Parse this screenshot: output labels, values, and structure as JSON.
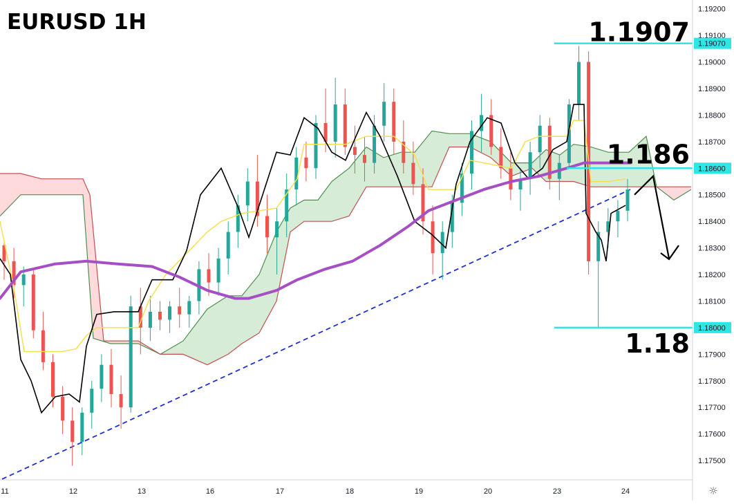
{
  "chart_data": {
    "type": "candlestick",
    "title": "EURUSD 1H",
    "colors": {
      "up": "#26a69a",
      "down": "#ef5350",
      "ma200": "#a64fc4",
      "tenkan": "#000000",
      "kijun": "#f5e050",
      "cloud_bull_fill": "#c8e6c9",
      "cloud_bull_line": "#4c8f4c",
      "cloud_bear_fill": "#ffcdd2",
      "cloud_bear_line": "#c0504d",
      "trendline": "#1a2fd6",
      "level_line": "#2ee6e6",
      "annotation": "#000000"
    },
    "x_axis": {
      "tick_labels": [
        "11",
        "12",
        "13",
        "16",
        "17",
        "18",
        "19",
        "20",
        "23",
        "24"
      ]
    },
    "y_axis": {
      "ylim": [
        1.1743,
        1.1922
      ],
      "tick_labels": [
        "1.19200",
        "1.19100",
        "1.19000",
        "1.18900",
        "1.18800",
        "1.18700",
        "1.18500",
        "1.18400",
        "1.18300",
        "1.18200",
        "1.18100",
        "1.17900",
        "1.17800",
        "1.17700",
        "1.17600",
        "1.17500"
      ],
      "tick_values": [
        1.192,
        1.191,
        1.19,
        1.189,
        1.188,
        1.187,
        1.185,
        1.184,
        1.183,
        1.182,
        1.181,
        1.179,
        1.178,
        1.177,
        1.176,
        1.175
      ],
      "highlighted_labels": [
        "1.19070",
        "1.18600",
        "1.18000"
      ],
      "highlighted_values": [
        1.1907,
        1.186,
        1.18
      ]
    },
    "annotations": [
      {
        "text": "1.1907",
        "value": 1.1907
      },
      {
        "text": "1.186",
        "value": 1.186
      },
      {
        "text": "1.18",
        "value": 1.18
      }
    ],
    "horizontal_levels": [
      1.1907,
      1.186,
      1.18
    ],
    "trendline": {
      "start": {
        "x": 3,
        "y": 1.1743
      },
      "end": {
        "x": 912,
        "y": 1.1852
      }
    },
    "projection": [
      {
        "x": 918,
        "y": 1.185
      },
      {
        "x": 945,
        "y": 1.1857
      },
      {
        "x": 968,
        "y": 1.1826
      }
    ],
    "ma200": [
      [
        0,
        1.1811
      ],
      [
        30,
        1.1821
      ],
      [
        80,
        1.1824
      ],
      [
        125,
        1.1825
      ],
      [
        170,
        1.1824
      ],
      [
        220,
        1.1823
      ],
      [
        260,
        1.1819
      ],
      [
        300,
        1.1814
      ],
      [
        340,
        1.1811
      ],
      [
        360,
        1.1811
      ],
      [
        400,
        1.1814
      ],
      [
        430,
        1.1818
      ],
      [
        470,
        1.1822
      ],
      [
        510,
        1.1825
      ],
      [
        550,
        1.1831
      ],
      [
        590,
        1.1838
      ],
      [
        620,
        1.1844
      ],
      [
        660,
        1.1848
      ],
      [
        700,
        1.1852
      ],
      [
        740,
        1.1855
      ],
      [
        780,
        1.1857
      ],
      [
        820,
        1.186
      ],
      [
        845,
        1.1862
      ],
      [
        870,
        1.1862
      ],
      [
        912,
        1.1862
      ]
    ],
    "tenkan": [
      [
        0,
        1.1826
      ],
      [
        15,
        1.182
      ],
      [
        30,
        1.1788
      ],
      [
        45,
        1.178
      ],
      [
        60,
        1.1768
      ],
      [
        80,
        1.1774
      ],
      [
        100,
        1.1775
      ],
      [
        115,
        1.1772
      ],
      [
        125,
        1.1793
      ],
      [
        140,
        1.1805
      ],
      [
        165,
        1.1806
      ],
      [
        200,
        1.1806
      ],
      [
        220,
        1.1818
      ],
      [
        250,
        1.1818
      ],
      [
        270,
        1.1829
      ],
      [
        290,
        1.185
      ],
      [
        320,
        1.186
      ],
      [
        345,
        1.1845
      ],
      [
        360,
        1.1834
      ],
      [
        380,
        1.185
      ],
      [
        400,
        1.1866
      ],
      [
        420,
        1.1865
      ],
      [
        440,
        1.1879
      ],
      [
        460,
        1.1875
      ],
      [
        480,
        1.1866
      ],
      [
        500,
        1.1863
      ],
      [
        530,
        1.1881
      ],
      [
        550,
        1.1872
      ],
      [
        575,
        1.1857
      ],
      [
        600,
        1.184
      ],
      [
        625,
        1.1835
      ],
      [
        645,
        1.183
      ],
      [
        660,
        1.1854
      ],
      [
        680,
        1.187
      ],
      [
        705,
        1.1879
      ],
      [
        725,
        1.1877
      ],
      [
        745,
        1.1862
      ],
      [
        765,
        1.1856
      ],
      [
        785,
        1.186
      ],
      [
        800,
        1.1867
      ],
      [
        820,
        1.187
      ],
      [
        830,
        1.1884
      ],
      [
        845,
        1.1884
      ],
      [
        848,
        1.1843
      ],
      [
        862,
        1.1836
      ],
      [
        870,
        1.1833
      ],
      [
        877,
        1.1825
      ],
      [
        884,
        1.1843
      ],
      [
        905,
        1.1846
      ]
    ],
    "kijun": [
      [
        0,
        1.184
      ],
      [
        20,
        1.1815
      ],
      [
        35,
        1.1791
      ],
      [
        90,
        1.1791
      ],
      [
        110,
        1.1792
      ],
      [
        125,
        1.1797
      ],
      [
        140,
        1.18
      ],
      [
        200,
        1.18
      ],
      [
        215,
        1.181
      ],
      [
        240,
        1.182
      ],
      [
        270,
        1.1828
      ],
      [
        300,
        1.1836
      ],
      [
        320,
        1.184
      ],
      [
        350,
        1.1843
      ],
      [
        400,
        1.1845
      ],
      [
        430,
        1.1856
      ],
      [
        440,
        1.1869
      ],
      [
        460,
        1.1869
      ],
      [
        500,
        1.1869
      ],
      [
        530,
        1.1872
      ],
      [
        570,
        1.1872
      ],
      [
        600,
        1.1865
      ],
      [
        620,
        1.1852
      ],
      [
        660,
        1.1852
      ],
      [
        680,
        1.1863
      ],
      [
        700,
        1.1862
      ],
      [
        740,
        1.186
      ],
      [
        760,
        1.187
      ],
      [
        780,
        1.1872
      ],
      [
        820,
        1.1872
      ],
      [
        830,
        1.1878
      ],
      [
        845,
        1.1878
      ],
      [
        855,
        1.1855
      ],
      [
        880,
        1.1855
      ],
      [
        905,
        1.1856
      ]
    ],
    "cloud": {
      "span_a": [
        [
          0,
          1.1842
        ],
        [
          30,
          1.185
        ],
        [
          60,
          1.185
        ],
        [
          95,
          1.185
        ],
        [
          120,
          1.185
        ],
        [
          135,
          1.1796
        ],
        [
          160,
          1.1794
        ],
        [
          200,
          1.1794
        ],
        [
          232,
          1.179
        ],
        [
          265,
          1.1795
        ],
        [
          300,
          1.1807
        ],
        [
          330,
          1.1812
        ],
        [
          350,
          1.1812
        ],
        [
          375,
          1.182
        ],
        [
          400,
          1.1836
        ],
        [
          420,
          1.1845
        ],
        [
          440,
          1.1848
        ],
        [
          460,
          1.1848
        ],
        [
          480,
          1.1855
        ],
        [
          505,
          1.186
        ],
        [
          530,
          1.1868
        ],
        [
          555,
          1.1864
        ],
        [
          580,
          1.1866
        ],
        [
          600,
          1.1866
        ],
        [
          625,
          1.1874
        ],
        [
          650,
          1.1873
        ],
        [
          680,
          1.1873
        ],
        [
          710,
          1.187
        ],
        [
          740,
          1.1862
        ],
        [
          770,
          1.1862
        ],
        [
          790,
          1.1867
        ],
        [
          810,
          1.1865
        ],
        [
          830,
          1.1869
        ],
        [
          855,
          1.1868
        ],
        [
          880,
          1.1866
        ],
        [
          910,
          1.1866
        ],
        [
          935,
          1.1872
        ],
        [
          950,
          1.1853
        ],
        [
          975,
          1.1848
        ],
        [
          1000,
          1.1852
        ]
      ],
      "span_b": [
        [
          0,
          1.1858
        ],
        [
          30,
          1.1858
        ],
        [
          60,
          1.1856
        ],
        [
          95,
          1.1856
        ],
        [
          120,
          1.1856
        ],
        [
          130,
          1.185
        ],
        [
          150,
          1.1795
        ],
        [
          200,
          1.1795
        ],
        [
          232,
          1.179
        ],
        [
          265,
          1.179
        ],
        [
          300,
          1.1786
        ],
        [
          330,
          1.179
        ],
        [
          350,
          1.1794
        ],
        [
          375,
          1.1798
        ],
        [
          400,
          1.181
        ],
        [
          420,
          1.1836
        ],
        [
          440,
          1.184
        ],
        [
          460,
          1.184
        ],
        [
          480,
          1.184
        ],
        [
          505,
          1.1842
        ],
        [
          530,
          1.1853
        ],
        [
          555,
          1.1853
        ],
        [
          580,
          1.1853
        ],
        [
          600,
          1.1853
        ],
        [
          625,
          1.1853
        ],
        [
          650,
          1.1868
        ],
        [
          680,
          1.1868
        ],
        [
          710,
          1.1864
        ],
        [
          740,
          1.1857
        ],
        [
          770,
          1.186
        ],
        [
          790,
          1.1855
        ],
        [
          810,
          1.1855
        ],
        [
          830,
          1.1855
        ],
        [
          855,
          1.1853
        ],
        [
          880,
          1.1853
        ],
        [
          910,
          1.1853
        ],
        [
          935,
          1.1853
        ],
        [
          950,
          1.1853
        ],
        [
          975,
          1.1853
        ],
        [
          1000,
          1.1853
        ]
      ]
    },
    "candles_note": "OHLC series below approximates the hourly candles; index 0 at left edge.",
    "candles": [
      [
        1.1831,
        1.1832,
        1.1818,
        1.1825
      ],
      [
        1.1825,
        1.183,
        1.1811,
        1.1816
      ],
      [
        1.1816,
        1.1823,
        1.1808,
        1.182
      ],
      [
        1.182,
        1.1822,
        1.1796,
        1.1799
      ],
      [
        1.1799,
        1.1806,
        1.1784,
        1.1787
      ],
      [
        1.1787,
        1.179,
        1.177,
        1.1774
      ],
      [
        1.1774,
        1.1778,
        1.176,
        1.1765
      ],
      [
        1.1765,
        1.177,
        1.1748,
        1.1757
      ],
      [
        1.1757,
        1.177,
        1.1752,
        1.1768
      ],
      [
        1.1768,
        1.178,
        1.1762,
        1.1777
      ],
      [
        1.1777,
        1.179,
        1.1772,
        1.1786
      ],
      [
        1.1786,
        1.1792,
        1.177,
        1.1775
      ],
      [
        1.1775,
        1.1782,
        1.1762,
        1.177
      ],
      [
        1.177,
        1.1812,
        1.1768,
        1.1808
      ],
      [
        1.1808,
        1.1815,
        1.179,
        1.18
      ],
      [
        1.18,
        1.1812,
        1.1795,
        1.1806
      ],
      [
        1.1806,
        1.181,
        1.1799,
        1.1803
      ],
      [
        1.1803,
        1.181,
        1.1798,
        1.1808
      ],
      [
        1.1808,
        1.1815,
        1.18,
        1.1805
      ],
      [
        1.1805,
        1.1812,
        1.18,
        1.181
      ],
      [
        1.181,
        1.1825,
        1.1805,
        1.1822
      ],
      [
        1.1822,
        1.1828,
        1.1812,
        1.1817
      ],
      [
        1.1817,
        1.183,
        1.1812,
        1.1826
      ],
      [
        1.1826,
        1.184,
        1.182,
        1.1836
      ],
      [
        1.1836,
        1.185,
        1.183,
        1.1846
      ],
      [
        1.1846,
        1.186,
        1.184,
        1.1855
      ],
      [
        1.1855,
        1.1865,
        1.1838,
        1.1842
      ],
      [
        1.1842,
        1.185,
        1.1828,
        1.1834
      ],
      [
        1.1834,
        1.1845,
        1.182,
        1.184
      ],
      [
        1.184,
        1.1858,
        1.1834,
        1.1852
      ],
      [
        1.1852,
        1.1868,
        1.1846,
        1.1864
      ],
      [
        1.1864,
        1.187,
        1.1855,
        1.186
      ],
      [
        1.186,
        1.188,
        1.1856,
        1.1877
      ],
      [
        1.1877,
        1.189,
        1.1866,
        1.187
      ],
      [
        1.187,
        1.1894,
        1.1864,
        1.1884
      ],
      [
        1.1884,
        1.189,
        1.1865,
        1.1868
      ],
      [
        1.1868,
        1.1876,
        1.1858,
        1.1865
      ],
      [
        1.1865,
        1.1872,
        1.1855,
        1.1862
      ],
      [
        1.1862,
        1.188,
        1.1858,
        1.1876
      ],
      [
        1.1876,
        1.1892,
        1.187,
        1.1885
      ],
      [
        1.1885,
        1.189,
        1.1865,
        1.187
      ],
      [
        1.187,
        1.1878,
        1.1858,
        1.1862
      ],
      [
        1.1862,
        1.187,
        1.185,
        1.1854
      ],
      [
        1.1854,
        1.186,
        1.1835,
        1.184
      ],
      [
        1.184,
        1.1846,
        1.182,
        1.1828
      ],
      [
        1.1828,
        1.184,
        1.1818,
        1.1836
      ],
      [
        1.1836,
        1.185,
        1.183,
        1.1847
      ],
      [
        1.1847,
        1.1862,
        1.1842,
        1.1858
      ],
      [
        1.1858,
        1.1878,
        1.1852,
        1.1874
      ],
      [
        1.1874,
        1.1888,
        1.1866,
        1.188
      ],
      [
        1.188,
        1.1886,
        1.1865,
        1.1868
      ],
      [
        1.1868,
        1.1875,
        1.1856,
        1.186
      ],
      [
        1.186,
        1.1866,
        1.1848,
        1.1852
      ],
      [
        1.1852,
        1.186,
        1.1844,
        1.1856
      ],
      [
        1.1856,
        1.187,
        1.185,
        1.1866
      ],
      [
        1.1866,
        1.188,
        1.186,
        1.1876
      ],
      [
        1.1876,
        1.1879,
        1.1852,
        1.1856
      ],
      [
        1.1856,
        1.1865,
        1.1848,
        1.1862
      ],
      [
        1.1862,
        1.1886,
        1.186,
        1.1884
      ],
      [
        1.1884,
        1.1906,
        1.1878,
        1.19
      ],
      [
        1.19,
        1.1904,
        1.182,
        1.1825
      ],
      [
        1.1825,
        1.184,
        1.18,
        1.1836
      ],
      [
        1.1836,
        1.1845,
        1.183,
        1.184
      ],
      [
        1.184,
        1.1848,
        1.1834,
        1.1844
      ],
      [
        1.1844,
        1.1856,
        1.184,
        1.1852
      ]
    ]
  }
}
